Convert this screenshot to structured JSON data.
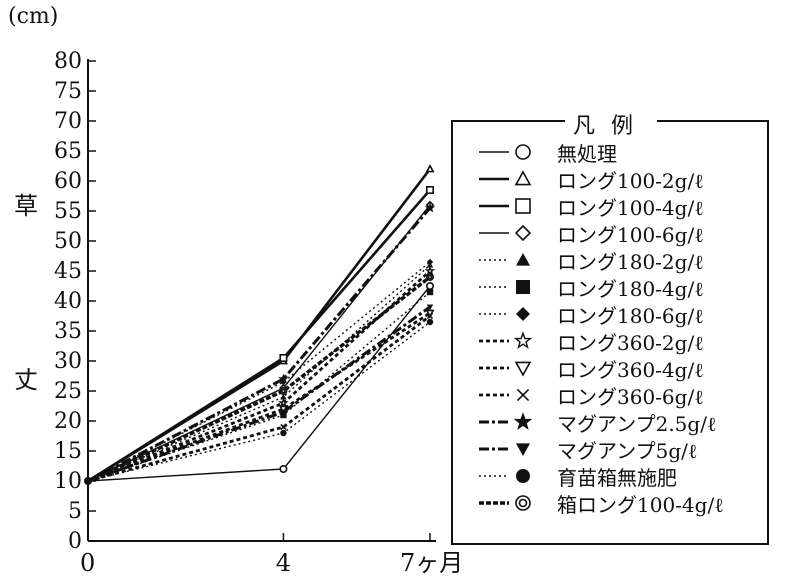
{
  "chart_data": {
    "type": "line",
    "unit_label": "(cm)",
    "ylabel": "草丈",
    "ylim": [
      0,
      80
    ],
    "y_ticks": [
      0,
      5,
      10,
      15,
      20,
      25,
      30,
      35,
      40,
      45,
      50,
      55,
      60,
      65,
      70,
      75,
      80
    ],
    "x": [
      0,
      4,
      7
    ],
    "x_tick_labels": [
      "0",
      "4",
      "7ヶ月"
    ],
    "legend_title": "凡例",
    "series": [
      {
        "name": "無処理",
        "values": [
          10,
          12,
          42.5
        ],
        "marker": "circle-open",
        "line": "solid-thin"
      },
      {
        "name": "ロング100-2g/ℓ",
        "values": [
          10,
          30,
          62
        ],
        "marker": "triangle-open",
        "line": "solid-thick"
      },
      {
        "name": "ロング100-4g/ℓ",
        "values": [
          10,
          30.5,
          58.5
        ],
        "marker": "square-open",
        "line": "solid-thick"
      },
      {
        "name": "ロング100-6g/ℓ",
        "values": [
          10,
          25.5,
          56
        ],
        "marker": "diamond-open",
        "line": "solid-thin"
      },
      {
        "name": "ロング180-2g/ℓ",
        "values": [
          10,
          24,
          46
        ],
        "marker": "triangle-filled",
        "line": "dotted"
      },
      {
        "name": "ロング180-4g/ℓ",
        "values": [
          10,
          21,
          41.5
        ],
        "marker": "square-filled",
        "line": "dotted"
      },
      {
        "name": "ロング180-6g/ℓ",
        "values": [
          10,
          26.5,
          46.5
        ],
        "marker": "diamond-filled",
        "line": "dotted"
      },
      {
        "name": "ロング360-2g/ℓ",
        "values": [
          10,
          23,
          45
        ],
        "marker": "star-open",
        "line": "dashed-thick"
      },
      {
        "name": "ロング360-4g/ℓ",
        "values": [
          10,
          22,
          38
        ],
        "marker": "triangle-down-open",
        "line": "dashed-thick"
      },
      {
        "name": "ロング360-6g/ℓ",
        "values": [
          10,
          19,
          37.5
        ],
        "marker": "cross",
        "line": "dashed-thick"
      },
      {
        "name": "マグアンプ2.5g/ℓ",
        "values": [
          10,
          27,
          55.5
        ],
        "marker": "star-filled",
        "line": "dashdot-thick"
      },
      {
        "name": "マグアンプ5g/ℓ",
        "values": [
          10,
          21.5,
          39
        ],
        "marker": "triangle-down-filled",
        "line": "dashdot-thick"
      },
      {
        "name": "育苗箱無施肥",
        "values": [
          10,
          18,
          36.5
        ],
        "marker": "circle-filled",
        "line": "dotted"
      },
      {
        "name": "箱ロング100-4g/ℓ",
        "values": [
          10,
          25,
          44
        ],
        "marker": "double-circle",
        "line": "dashed-bold"
      }
    ]
  }
}
